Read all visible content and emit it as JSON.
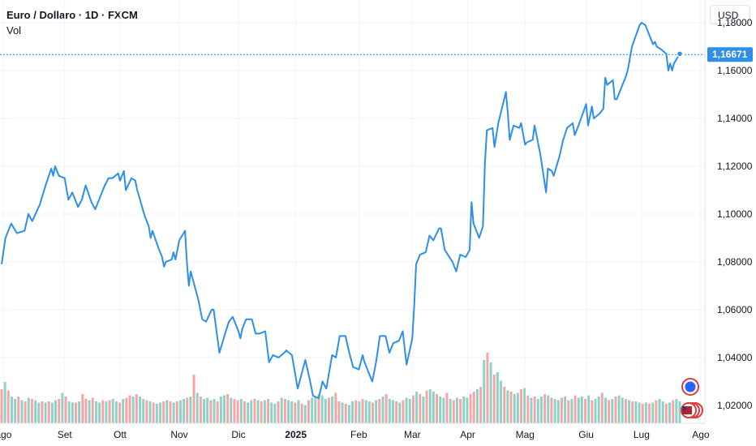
{
  "legend": {
    "symbol": "Euro / Dollaro · 1D · FXCM",
    "indicator": "Vol"
  },
  "axis": {
    "currency_button": "USD"
  },
  "colors": {
    "line": "#2f8fe8",
    "price_label_bg": "#2f8fe8",
    "vol_up": "#8fd1c6",
    "vol_down": "#f4a6a6",
    "event_badge": "#e03c3c",
    "event_badge_alt": "#2962ff"
  },
  "icons": {
    "event_markers": [
      "dividend-earnings-icon",
      "us-flag-event-icon"
    ]
  },
  "chart_data": {
    "type": "line",
    "title": "Euro / Dollaro · 1D · FXCM",
    "xlabel": "",
    "ylabel": "",
    "ylim": [
      1.0125,
      1.1895
    ],
    "y_ticks": [
      "1,18000",
      "1,16000",
      "1,14000",
      "1,12000",
      "1,10000",
      "1,08000",
      "1,06000",
      "1,04000",
      "1,02000"
    ],
    "y_tick_values": [
      1.18,
      1.16,
      1.14,
      1.12,
      1.1,
      1.08,
      1.06,
      1.04,
      1.02
    ],
    "x_ticks": [
      "ago",
      "Set",
      "Ott",
      "Nov",
      "Dic",
      "2025",
      "Feb",
      "Mar",
      "Apr",
      "Mag",
      "Giu",
      "Lug",
      "Ago"
    ],
    "x_tick_dates": [
      "2024-08-01",
      "2024-09-02",
      "2024-10-01",
      "2024-11-01",
      "2024-12-02",
      "2025-01-01",
      "2025-02-03",
      "2025-03-03",
      "2025-04-01",
      "2025-05-01",
      "2025-06-02",
      "2025-07-01",
      "2025-08-01"
    ],
    "grid": true,
    "last_price_label": "1,16671",
    "last_price": 1.16671,
    "series": [
      {
        "points": [
          [
            "2024-07-31",
            1.079
          ],
          [
            "2024-08-02",
            1.09
          ],
          [
            "2024-08-05",
            1.096
          ],
          [
            "2024-08-08",
            1.092
          ],
          [
            "2024-08-12",
            1.093
          ],
          [
            "2024-08-14",
            1.1
          ],
          [
            "2024-08-16",
            1.097
          ],
          [
            "2024-08-20",
            1.104
          ],
          [
            "2024-08-23",
            1.112
          ],
          [
            "2024-08-26",
            1.119
          ],
          [
            "2024-08-27",
            1.116
          ],
          [
            "2024-08-28",
            1.12
          ],
          [
            "2024-08-30",
            1.116
          ],
          [
            "2024-09-02",
            1.115
          ],
          [
            "2024-09-04",
            1.106
          ],
          [
            "2024-09-06",
            1.109
          ],
          [
            "2024-09-09",
            1.103
          ],
          [
            "2024-09-11",
            1.106
          ],
          [
            "2024-09-13",
            1.112
          ],
          [
            "2024-09-16",
            1.105
          ],
          [
            "2024-09-18",
            1.102
          ],
          [
            "2024-09-20",
            1.106
          ],
          [
            "2024-09-23",
            1.112
          ],
          [
            "2024-09-25",
            1.115
          ],
          [
            "2024-09-27",
            1.115
          ],
          [
            "2024-09-30",
            1.117
          ],
          [
            "2024-10-01",
            1.114
          ],
          [
            "2024-10-03",
            1.118
          ],
          [
            "2024-10-04",
            1.11
          ],
          [
            "2024-10-07",
            1.115
          ],
          [
            "2024-10-09",
            1.114
          ],
          [
            "2024-10-10",
            1.11
          ],
          [
            "2024-10-14",
            1.099
          ],
          [
            "2024-10-16",
            1.095
          ],
          [
            "2024-10-17",
            1.09
          ],
          [
            "2024-10-18",
            1.093
          ],
          [
            "2024-10-21",
            1.086
          ],
          [
            "2024-10-23",
            1.082
          ],
          [
            "2024-10-24",
            1.078
          ],
          [
            "2024-10-25",
            1.08
          ],
          [
            "2024-10-28",
            1.081
          ],
          [
            "2024-10-29",
            1.084
          ],
          [
            "2024-10-30",
            1.081
          ],
          [
            "2024-10-31",
            1.085
          ],
          [
            "2024-11-01",
            1.089
          ],
          [
            "2024-11-04",
            1.093
          ],
          [
            "2024-11-05",
            1.08
          ],
          [
            "2024-11-06",
            1.07
          ],
          [
            "2024-11-07",
            1.076
          ],
          [
            "2024-11-11",
            1.064
          ],
          [
            "2024-11-13",
            1.056
          ],
          [
            "2024-11-15",
            1.055
          ],
          [
            "2024-11-18",
            1.06
          ],
          [
            "2024-11-19",
            1.06
          ],
          [
            "2024-11-21",
            1.048
          ],
          [
            "2024-11-22",
            1.042
          ],
          [
            "2024-11-25",
            1.05
          ],
          [
            "2024-11-27",
            1.055
          ],
          [
            "2024-11-29",
            1.057
          ],
          [
            "2024-12-02",
            1.051
          ],
          [
            "2024-12-03",
            1.048
          ],
          [
            "2024-12-04",
            1.052
          ],
          [
            "2024-12-06",
            1.056
          ],
          [
            "2024-12-09",
            1.056
          ],
          [
            "2024-12-11",
            1.05
          ],
          [
            "2024-12-13",
            1.05
          ],
          [
            "2024-12-16",
            1.051
          ],
          [
            "2024-12-18",
            1.038
          ],
          [
            "2024-12-20",
            1.041
          ],
          [
            "2024-12-23",
            1.04
          ],
          [
            "2024-12-26",
            1.042
          ],
          [
            "2024-12-27",
            1.043
          ],
          [
            "2024-12-30",
            1.041
          ],
          [
            "2025-01-02",
            1.027
          ],
          [
            "2025-01-03",
            1.03
          ],
          [
            "2025-01-06",
            1.039
          ],
          [
            "2025-01-08",
            1.032
          ],
          [
            "2025-01-10",
            1.024
          ],
          [
            "2025-01-13",
            1.023
          ],
          [
            "2025-01-15",
            1.03
          ],
          [
            "2025-01-17",
            1.027
          ],
          [
            "2025-01-20",
            1.041
          ],
          [
            "2025-01-22",
            1.04
          ],
          [
            "2025-01-24",
            1.049
          ],
          [
            "2025-01-27",
            1.049
          ],
          [
            "2025-01-29",
            1.042
          ],
          [
            "2025-01-31",
            1.036
          ],
          [
            "2025-02-03",
            1.035
          ],
          [
            "2025-02-05",
            1.041
          ],
          [
            "2025-02-06",
            1.038
          ],
          [
            "2025-02-10",
            1.03
          ],
          [
            "2025-02-12",
            1.038
          ],
          [
            "2025-02-14",
            1.049
          ],
          [
            "2025-02-17",
            1.049
          ],
          [
            "2025-02-19",
            1.042
          ],
          [
            "2025-02-21",
            1.046
          ],
          [
            "2025-02-24",
            1.047
          ],
          [
            "2025-02-26",
            1.051
          ],
          [
            "2025-02-28",
            1.037
          ],
          [
            "2025-03-03",
            1.048
          ],
          [
            "2025-03-04",
            1.062
          ],
          [
            "2025-03-05",
            1.079
          ],
          [
            "2025-03-07",
            1.083
          ],
          [
            "2025-03-10",
            1.084
          ],
          [
            "2025-03-12",
            1.091
          ],
          [
            "2025-03-14",
            1.089
          ],
          [
            "2025-03-17",
            1.094
          ],
          [
            "2025-03-18",
            1.094
          ],
          [
            "2025-03-20",
            1.085
          ],
          [
            "2025-03-24",
            1.08
          ],
          [
            "2025-03-26",
            1.076
          ],
          [
            "2025-03-28",
            1.083
          ],
          [
            "2025-03-31",
            1.082
          ],
          [
            "2025-04-02",
            1.085
          ],
          [
            "2025-04-03",
            1.105
          ],
          [
            "2025-04-04",
            1.096
          ],
          [
            "2025-04-07",
            1.09
          ],
          [
            "2025-04-09",
            1.095
          ],
          [
            "2025-04-10",
            1.121
          ],
          [
            "2025-04-11",
            1.135
          ],
          [
            "2025-04-14",
            1.136
          ],
          [
            "2025-04-15",
            1.128
          ],
          [
            "2025-04-17",
            1.138
          ],
          [
            "2025-04-21",
            1.151
          ],
          [
            "2025-04-22",
            1.142
          ],
          [
            "2025-04-23",
            1.131
          ],
          [
            "2025-04-25",
            1.137
          ],
          [
            "2025-04-28",
            1.136
          ],
          [
            "2025-04-29",
            1.138
          ],
          [
            "2025-05-01",
            1.129
          ],
          [
            "2025-05-02",
            1.13
          ],
          [
            "2025-05-05",
            1.131
          ],
          [
            "2025-05-06",
            1.137
          ],
          [
            "2025-05-07",
            1.133
          ],
          [
            "2025-05-09",
            1.125
          ],
          [
            "2025-05-12",
            1.109
          ],
          [
            "2025-05-13",
            1.119
          ],
          [
            "2025-05-15",
            1.118
          ],
          [
            "2025-05-16",
            1.116
          ],
          [
            "2025-05-19",
            1.124
          ],
          [
            "2025-05-21",
            1.131
          ],
          [
            "2025-05-23",
            1.136
          ],
          [
            "2025-05-26",
            1.138
          ],
          [
            "2025-05-27",
            1.133
          ],
          [
            "2025-05-29",
            1.137
          ],
          [
            "2025-06-02",
            1.146
          ],
          [
            "2025-06-03",
            1.137
          ],
          [
            "2025-06-05",
            1.145
          ],
          [
            "2025-06-06",
            1.14
          ],
          [
            "2025-06-09",
            1.142
          ],
          [
            "2025-06-11",
            1.144
          ],
          [
            "2025-06-12",
            1.157
          ],
          [
            "2025-06-13",
            1.154
          ],
          [
            "2025-06-16",
            1.156
          ],
          [
            "2025-06-17",
            1.148
          ],
          [
            "2025-06-18",
            1.148
          ],
          [
            "2025-06-20",
            1.152
          ],
          [
            "2025-06-23",
            1.158
          ],
          [
            "2025-06-24",
            1.161
          ],
          [
            "2025-06-26",
            1.17
          ],
          [
            "2025-06-30",
            1.179
          ],
          [
            "2025-07-01",
            1.18
          ],
          [
            "2025-07-03",
            1.179
          ],
          [
            "2025-07-04",
            1.177
          ],
          [
            "2025-07-07",
            1.171
          ],
          [
            "2025-07-08",
            1.172
          ],
          [
            "2025-07-09",
            1.17
          ],
          [
            "2025-07-11",
            1.169
          ],
          [
            "2025-07-14",
            1.167
          ],
          [
            "2025-07-15",
            1.16
          ],
          [
            "2025-07-16",
            1.163
          ],
          [
            "2025-07-17",
            1.16
          ],
          [
            "2025-07-18",
            1.163
          ],
          [
            "2025-07-21",
            1.167
          ]
        ]
      }
    ],
    "volume": {
      "values": [
        28,
        34,
        27,
        22,
        20,
        22,
        19,
        18,
        21,
        20,
        19,
        17,
        18,
        17,
        18,
        17,
        19,
        20,
        25,
        22,
        18,
        17,
        17,
        18,
        24,
        20,
        19,
        21,
        18,
        17,
        19,
        18,
        19,
        20,
        18,
        17,
        20,
        21,
        23,
        22,
        24,
        22,
        20,
        19,
        18,
        17,
        16,
        17,
        18,
        19,
        18,
        17,
        18,
        19,
        20,
        21,
        22,
        40,
        25,
        22,
        20,
        21,
        19,
        20,
        18,
        22,
        23,
        24,
        21,
        20,
        19,
        20,
        18,
        17,
        19,
        20,
        19,
        18,
        19,
        20,
        17,
        16,
        18,
        21,
        20,
        19,
        18,
        17,
        19,
        16,
        15,
        19,
        21,
        22,
        24,
        23,
        20,
        21,
        22,
        25,
        18,
        17,
        16,
        15,
        18,
        19,
        18,
        20,
        19,
        18,
        17,
        19,
        20,
        22,
        24,
        20,
        19,
        18,
        17,
        19,
        21,
        20,
        23,
        26,
        24,
        22,
        27,
        28,
        26,
        24,
        22,
        21,
        25,
        20,
        19,
        21,
        20,
        22,
        21,
        24,
        26,
        28,
        30,
        52,
        58,
        50,
        40,
        42,
        35,
        30,
        27,
        26,
        24,
        25,
        28,
        29,
        23,
        21,
        22,
        20,
        22,
        24,
        23,
        21,
        20,
        19,
        21,
        22,
        19,
        20,
        23,
        21,
        22,
        20,
        23,
        19,
        20,
        22,
        25,
        21,
        19,
        20,
        22,
        23,
        21,
        20,
        19,
        18,
        18,
        17,
        16,
        17,
        16,
        17,
        19,
        20,
        18,
        16,
        17,
        19,
        20,
        18
      ],
      "up": [
        0,
        1,
        0,
        1,
        1,
        0,
        1,
        0,
        1,
        0,
        1,
        1,
        0,
        1,
        0,
        1,
        1,
        0,
        1,
        0,
        1,
        1,
        0,
        1,
        0,
        0,
        1,
        0,
        1,
        1,
        0,
        1,
        0,
        1,
        1,
        0,
        1,
        0,
        0,
        1,
        0,
        1,
        1,
        0,
        1,
        0,
        1,
        1,
        0,
        1,
        0,
        1,
        0,
        1,
        1,
        0,
        1,
        0,
        1,
        0,
        1,
        1,
        0,
        1,
        0,
        1,
        1,
        0,
        1,
        0,
        0,
        1,
        0,
        1,
        1,
        0,
        1,
        0,
        1,
        0,
        1,
        1,
        0,
        1,
        0,
        1,
        1,
        0,
        1,
        0,
        1,
        0,
        1,
        1,
        0,
        1,
        1,
        0,
        1,
        0,
        0,
        1,
        0,
        1,
        1,
        0,
        1,
        0,
        1,
        1,
        0,
        1,
        0,
        1,
        0,
        1,
        1,
        0,
        1,
        0,
        1,
        1,
        0,
        1,
        0,
        1,
        0,
        1,
        1,
        0,
        1,
        1,
        0,
        1,
        0,
        1,
        0,
        1,
        1,
        0,
        0,
        1,
        0,
        1,
        0,
        1,
        0,
        1,
        1,
        0,
        1,
        0,
        1,
        1,
        0,
        1,
        0,
        1,
        0,
        1,
        1,
        0,
        1,
        0,
        1,
        1,
        0,
        1,
        0,
        1,
        0,
        1,
        1,
        0,
        1,
        0,
        1,
        1,
        0,
        1,
        0,
        1,
        0,
        1,
        1,
        0,
        1,
        0,
        1,
        1,
        0,
        1,
        0,
        1,
        0,
        1,
        1,
        0,
        1,
        0,
        1,
        1
      ]
    }
  }
}
